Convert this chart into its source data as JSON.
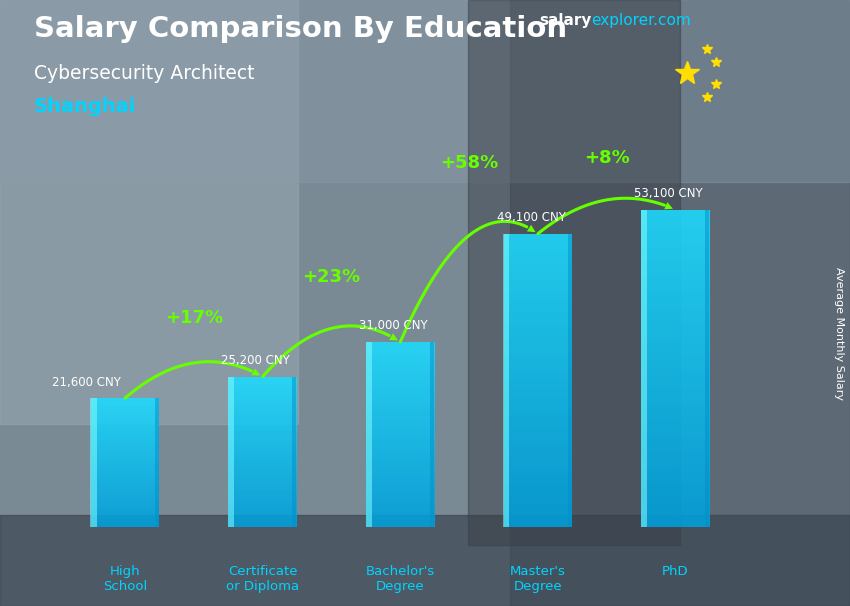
{
  "title_main": "Salary Comparison By Education",
  "title_sub1": "Cybersecurity Architect",
  "title_sub2": "Shanghai",
  "ylabel": "Average Monthly Salary",
  "watermark_salary": "salary",
  "watermark_rest": "explorer.com",
  "categories": [
    "High\nSchool",
    "Certificate\nor Diploma",
    "Bachelor's\nDegree",
    "Master's\nDegree",
    "PhD"
  ],
  "values": [
    21600,
    25200,
    31000,
    49100,
    53100
  ],
  "value_labels": [
    "21,600 CNY",
    "25,200 CNY",
    "31,000 CNY",
    "49,100 CNY",
    "53,100 CNY"
  ],
  "pct_labels": [
    "+17%",
    "+23%",
    "+58%",
    "+8%"
  ],
  "bar_color": "#00bfff",
  "bar_edge_color": "#00e5ff",
  "bar_alpha": 0.82,
  "bg_color": "#6b7a8a",
  "text_color_white": "#ffffff",
  "text_color_cyan": "#00d4ff",
  "text_color_green": "#66ff00",
  "arrow_color": "#66ff00",
  "cat_label_color": "#00d4ff",
  "figsize": [
    8.5,
    6.06
  ],
  "dpi": 100,
  "flag_red": "#DE2910",
  "flag_star": "#FFDE00"
}
